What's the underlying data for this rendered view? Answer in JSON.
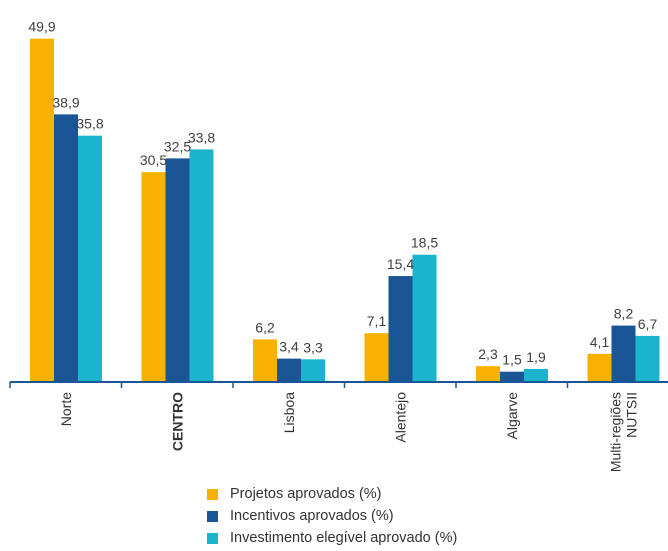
{
  "chart_data": {
    "type": "bar",
    "categories": [
      "Norte",
      "CENTRO",
      "Lisboa",
      "Alentejo",
      "Algarve",
      "Multi-regiões NUTSII"
    ],
    "category_lines": [
      [
        "Norte"
      ],
      [
        "CENTRO"
      ],
      [
        "Lisboa"
      ],
      [
        "Alentejo"
      ],
      [
        "Algarve"
      ],
      [
        "Multi-regiões",
        "NUTSII"
      ]
    ],
    "bold_category": "CENTRO",
    "series": [
      {
        "name": "Projetos aprovados (%)",
        "color": "#F7B200",
        "values": [
          49.9,
          30.5,
          6.2,
          7.1,
          2.3,
          4.1
        ],
        "labels": [
          "49,9",
          "30,5",
          "6,2",
          "7,1",
          "2,3",
          "4,1"
        ]
      },
      {
        "name": "Incentivos aprovados (%)",
        "color": "#1A5596",
        "values": [
          38.9,
          32.5,
          3.4,
          15.4,
          1.5,
          8.2
        ],
        "labels": [
          "38,9",
          "32,5",
          "3,4",
          "15,4",
          "1,5",
          "8,2"
        ]
      },
      {
        "name": "Investimento elegível aprovado (%)",
        "color": "#1AB5CC",
        "values": [
          35.8,
          33.8,
          3.3,
          18.5,
          1.9,
          6.7
        ],
        "labels": [
          "35,8",
          "33,8",
          "3,3",
          "18,5",
          "1,9",
          "6,7"
        ]
      }
    ],
    "title": "",
    "xlabel": "",
    "ylabel": "",
    "ylim": [
      0,
      50
    ],
    "grid": false,
    "legend_position": "bottom"
  }
}
